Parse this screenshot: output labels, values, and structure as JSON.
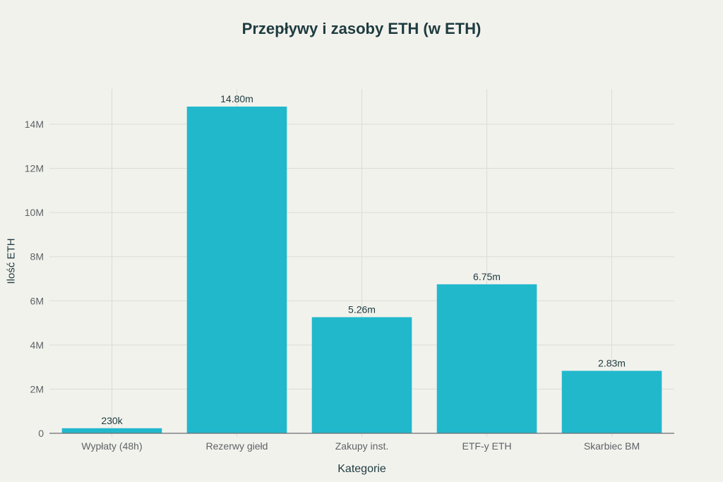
{
  "chart_data": {
    "type": "bar",
    "title": "Przepływy i zasoby ETH (w ETH)",
    "xlabel": "Kategorie",
    "ylabel": "Ilość ETH",
    "categories": [
      "Wypłaty (48h)",
      "Rezerwy giełd",
      "Zakupy inst.",
      "ETF-y ETH",
      "Skarbiec BM"
    ],
    "values": [
      230000,
      14800000,
      5260000,
      6750000,
      2830000
    ],
    "data_labels": [
      "230k",
      "14.80m",
      "5.26m",
      "6.75m",
      "2.83m"
    ],
    "yticks": [
      0,
      2000000,
      4000000,
      6000000,
      8000000,
      10000000,
      12000000,
      14000000
    ],
    "ytick_labels": [
      "0",
      "2M",
      "4M",
      "6M",
      "8M",
      "10M",
      "12M",
      "14M"
    ],
    "ylim": [
      0,
      15600000
    ],
    "grid": true,
    "bar_color": "#21b8cc"
  }
}
